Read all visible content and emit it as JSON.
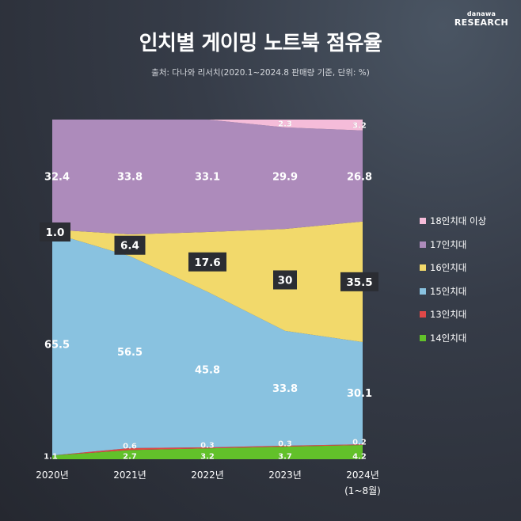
{
  "brand": {
    "small": "danawa",
    "big": "RESEARCH"
  },
  "title": "인치별 게이밍 노트북 점유율",
  "source": "출처: 다나와 리서치(2020.1~2024.8 판매량 기준, 단위: %)",
  "chart_data": {
    "type": "area",
    "stacked": true,
    "normalized_percent": true,
    "x": [
      "2020년",
      "2021년",
      "2022년",
      "2023년",
      "2024년"
    ],
    "x_sublabels": [
      "",
      "",
      "",
      "",
      "(1~8월)"
    ],
    "ylim": [
      0,
      100
    ],
    "grid": false,
    "legend_position": "right",
    "series": [
      {
        "name": "14인치대",
        "color": "#62c12a",
        "values": [
          1.1,
          2.7,
          3.2,
          3.7,
          4.2
        ],
        "labels": [
          "1.1",
          "2.7",
          "3.2",
          "3.7",
          "4.2"
        ]
      },
      {
        "name": "13인치대",
        "color": "#e04848",
        "values": [
          0,
          0.6,
          0.3,
          0.3,
          0.2
        ],
        "labels": [
          "",
          "0.6",
          "0.3",
          "0.3",
          "0.2"
        ]
      },
      {
        "name": "15인치대",
        "color": "#89c2e0",
        "values": [
          65.5,
          56.5,
          45.8,
          33.8,
          30.1
        ],
        "labels": [
          "65.5",
          "56.5",
          "45.8",
          "33.8",
          "30.1"
        ]
      },
      {
        "name": "16인치대",
        "color": "#f2d96b",
        "values": [
          1.0,
          6.4,
          17.6,
          30,
          35.5
        ],
        "labels": [
          "1.0",
          "6.4",
          "17.6",
          "30",
          "35.5"
        ]
      },
      {
        "name": "17인치대",
        "color": "#ad8bbb",
        "values": [
          32.4,
          33.8,
          33.1,
          29.9,
          26.8
        ],
        "labels": [
          "32.4",
          "33.8",
          "33.1",
          "29.9",
          "26.8"
        ]
      },
      {
        "name": "18인치대 이상",
        "color": "#f5bcd9",
        "values": [
          0,
          0,
          0,
          2.3,
          3.2
        ],
        "labels": [
          "",
          "",
          "",
          "2.3",
          "3.2"
        ]
      }
    ],
    "legend_order": [
      "18인치대 이상",
      "17인치대",
      "16인치대",
      "15인치대",
      "13인치대",
      "14인치대"
    ]
  }
}
